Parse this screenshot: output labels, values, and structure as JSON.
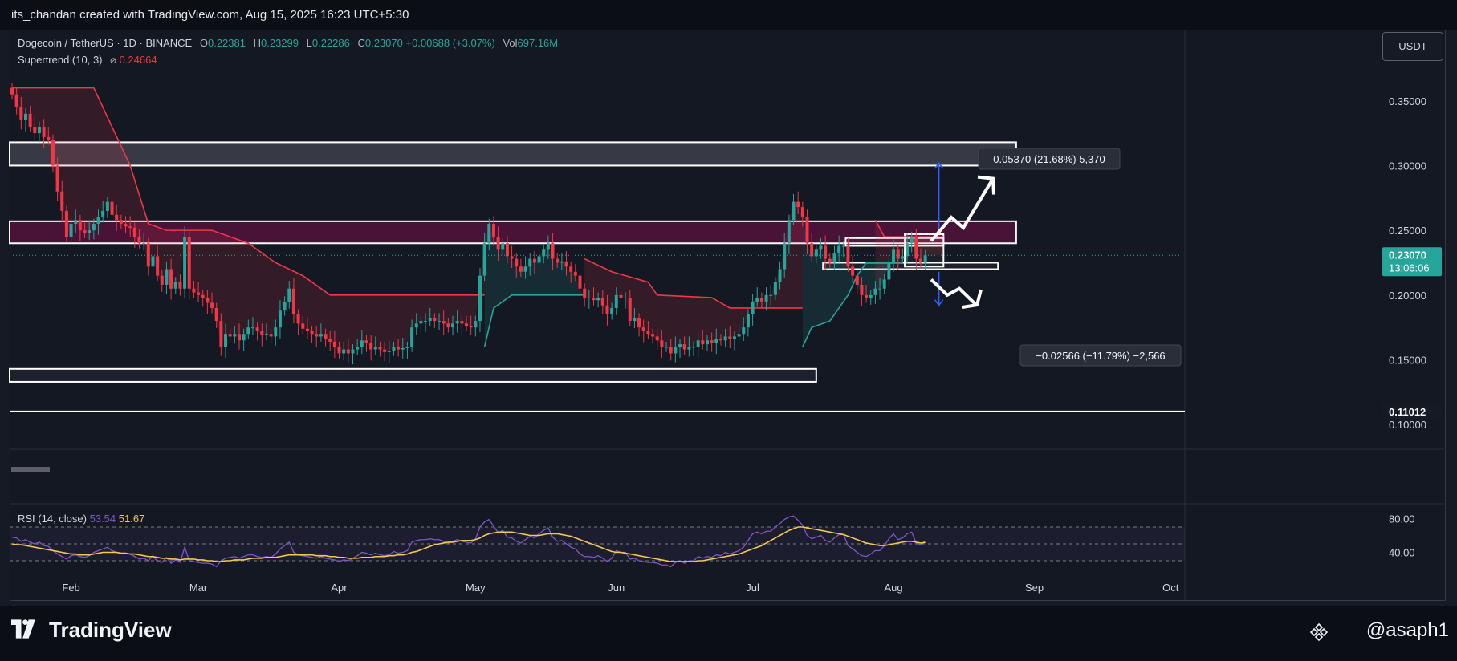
{
  "header": {
    "credit": "its_chandan created with TradingView.com, Aug 15, 2025 16:23 UTC+5:30"
  },
  "legend": {
    "symbol": "Dogecoin / TetherUS · 1D · BINANCE",
    "o_label": "O",
    "o_value": "0.22381",
    "h_label": "H",
    "h_value": "0.23299",
    "l_label": "L",
    "l_value": "0.22286",
    "c_label": "C",
    "c_value": "0.23070",
    "change": "+0.00688 (+3.07%)",
    "vol_label": "Vol",
    "vol_value": "697.16M",
    "supertrend_label": "Supertrend (10, 3)",
    "supertrend_sym": "⌀",
    "supertrend_value": "0.24664",
    "rsi_label": "RSI (14, close)",
    "rsi_value": "53.54",
    "rsi_ma_value": "51.67"
  },
  "currency_button": "USDT",
  "footer": {
    "brand": "TradingView",
    "author": "@asaph1"
  },
  "colors": {
    "up": "#26a69a",
    "down": "#f23645",
    "rsi": "#7e57c2",
    "rsi_ma": "#f2c94c",
    "background": "#141823"
  },
  "chart_data": {
    "type": "candlestick",
    "symbol": "DOGE/USDT",
    "interval": "1D",
    "x_labels": [
      "Feb",
      "Mar",
      "Apr",
      "May",
      "Jun",
      "Jul",
      "Aug",
      "Sep",
      "Oct"
    ],
    "y_ticks": [
      "0.35000",
      "0.30000",
      "0.25000",
      "0.20000",
      "0.15000",
      "0.10000"
    ],
    "y_tick_values": [
      0.35,
      0.3,
      0.25,
      0.2,
      0.15,
      0.1
    ],
    "ylim": [
      0.084,
      0.405
    ],
    "price_tag": {
      "value": "0.23070",
      "countdown": "13:06:06"
    },
    "low_tag": "0.11012",
    "series_start": "2025-01-19",
    "close": [
      0.355,
      0.345,
      0.335,
      0.34,
      0.33,
      0.325,
      0.33,
      0.322,
      0.32,
      0.3,
      0.28,
      0.265,
      0.245,
      0.255,
      0.258,
      0.25,
      0.248,
      0.25,
      0.255,
      0.26,
      0.265,
      0.272,
      0.262,
      0.258,
      0.255,
      0.253,
      0.252,
      0.245,
      0.24,
      0.24,
      0.222,
      0.23,
      0.215,
      0.208,
      0.22,
      0.205,
      0.21,
      0.205,
      0.245,
      0.205,
      0.202,
      0.2,
      0.198,
      0.194,
      0.19,
      0.18,
      0.16,
      0.17,
      0.168,
      0.17,
      0.165,
      0.17,
      0.175,
      0.175,
      0.172,
      0.169,
      0.17,
      0.168,
      0.175,
      0.188,
      0.195,
      0.205,
      0.185,
      0.178,
      0.174,
      0.172,
      0.17,
      0.168,
      0.17,
      0.166,
      0.164,
      0.16,
      0.155,
      0.158,
      0.155,
      0.158,
      0.16,
      0.165,
      0.163,
      0.158,
      0.16,
      0.158,
      0.156,
      0.157,
      0.16,
      0.158,
      0.159,
      0.16,
      0.175,
      0.178,
      0.18,
      0.18,
      0.182,
      0.18,
      0.18,
      0.178,
      0.175,
      0.178,
      0.18,
      0.178,
      0.176,
      0.175,
      0.18,
      0.215,
      0.24,
      0.255,
      0.245,
      0.235,
      0.24,
      0.23,
      0.228,
      0.222,
      0.218,
      0.222,
      0.228,
      0.225,
      0.23,
      0.235,
      0.24,
      0.228,
      0.225,
      0.226,
      0.222,
      0.218,
      0.215,
      0.205,
      0.198,
      0.198,
      0.196,
      0.198,
      0.192,
      0.185,
      0.19,
      0.2,
      0.198,
      0.198,
      0.18,
      0.182,
      0.175,
      0.172,
      0.17,
      0.168,
      0.165,
      0.16,
      0.16,
      0.155,
      0.16,
      0.162,
      0.158,
      0.16,
      0.16,
      0.165,
      0.162,
      0.165,
      0.163,
      0.166,
      0.165,
      0.168,
      0.166,
      0.168,
      0.17,
      0.175,
      0.185,
      0.195,
      0.198,
      0.195,
      0.2,
      0.2,
      0.21,
      0.22,
      0.24,
      0.258,
      0.272,
      0.268,
      0.26,
      0.24,
      0.23,
      0.235,
      0.238,
      0.228,
      0.225,
      0.232,
      0.238,
      0.238,
      0.222,
      0.215,
      0.208,
      0.2,
      0.198,
      0.2,
      0.205,
      0.205,
      0.212,
      0.225,
      0.235,
      0.228,
      0.23,
      0.24,
      0.245,
      0.228,
      0.225,
      0.2307
    ],
    "supertrend": {
      "down": [
        [
          0,
          0.36
        ],
        [
          18,
          0.36
        ],
        [
          26,
          0.3
        ],
        [
          30,
          0.255
        ],
        [
          34,
          0.25
        ],
        [
          44,
          0.25
        ],
        [
          52,
          0.24
        ],
        [
          58,
          0.225
        ],
        [
          64,
          0.215
        ],
        [
          70,
          0.2
        ],
        [
          90,
          0.2
        ],
        [
          104,
          0.2
        ],
        [
          104,
          0.2
        ]
      ],
      "down2": [
        [
          126,
          0.228
        ],
        [
          132,
          0.218
        ],
        [
          140,
          0.21
        ],
        [
          142,
          0.2
        ],
        [
          154,
          0.198
        ],
        [
          158,
          0.19
        ],
        [
          172,
          0.19
        ],
        [
          174,
          0.19
        ]
      ],
      "down3": [
        [
          190,
          0.258
        ],
        [
          192,
          0.245
        ],
        [
          200,
          0.245
        ],
        [
          205,
          0.245
        ]
      ],
      "up": [
        [
          104,
          0.16
        ],
        [
          106,
          0.19
        ],
        [
          110,
          0.2
        ],
        [
          126,
          0.2
        ]
      ],
      "up2": [
        [
          174,
          0.16
        ],
        [
          176,
          0.175
        ],
        [
          180,
          0.18
        ],
        [
          184,
          0.2
        ],
        [
          186,
          0.215
        ],
        [
          188,
          0.225
        ],
        [
          196,
          0.225
        ]
      ]
    },
    "zones": [
      {
        "from": 0,
        "to": 221,
        "low": 0.3,
        "high": 0.318
      },
      {
        "from": 0,
        "to": 221,
        "low": 0.24,
        "high": 0.257
      },
      {
        "from": 0,
        "to": 177,
        "low": 0.133,
        "high": 0.143
      },
      {
        "from": 184,
        "to": 205,
        "low": 0.238,
        "high": 0.244
      },
      {
        "from": 179,
        "to": 217,
        "low": 0.22,
        "high": 0.225
      },
      {
        "from": 197,
        "to": 205,
        "low": 0.222,
        "high": 0.247
      }
    ],
    "measure_up": {
      "label": "0.05370 (21.68%) 5,370",
      "from": 0.248,
      "to": 0.302
    },
    "measure_down": {
      "label": "−0.02566 (−11.79%) −2,566",
      "from": 0.218,
      "to": 0.192
    },
    "rsi": {
      "levels": [
        "80.00",
        "40.00"
      ],
      "level_values": [
        80,
        40
      ],
      "upper_band": 70,
      "middle_band": 50,
      "lower_band": 30,
      "values": [
        58,
        57,
        53,
        55,
        52,
        50,
        52,
        48,
        47,
        42,
        38,
        35,
        32,
        36,
        37,
        35,
        34,
        36,
        40,
        42,
        44,
        46,
        42,
        40,
        39,
        39,
        38,
        35,
        32,
        33,
        30,
        36,
        29,
        28,
        34,
        27,
        31,
        28,
        46,
        30,
        29,
        28,
        27,
        27,
        26,
        23,
        30,
        33,
        34,
        35,
        33,
        35,
        37,
        37,
        35,
        34,
        35,
        34,
        38,
        44,
        48,
        52,
        40,
        37,
        36,
        35,
        34,
        33,
        35,
        33,
        32,
        31,
        29,
        31,
        30,
        33,
        36,
        40,
        39,
        37,
        39,
        37,
        36,
        37,
        41,
        39,
        40,
        42,
        52,
        54,
        55,
        55,
        56,
        55,
        55,
        53,
        51,
        53,
        55,
        53,
        52,
        51,
        56,
        70,
        76,
        79,
        71,
        63,
        66,
        58,
        57,
        53,
        51,
        55,
        59,
        57,
        62,
        66,
        69,
        58,
        53,
        54,
        50,
        46,
        44,
        38,
        35,
        35,
        34,
        36,
        33,
        29,
        33,
        42,
        40,
        40,
        32,
        33,
        30,
        29,
        28,
        28,
        27,
        25,
        25,
        23,
        28,
        30,
        27,
        30,
        30,
        35,
        33,
        35,
        34,
        37,
        36,
        40,
        38,
        40,
        42,
        46,
        54,
        62,
        64,
        62,
        65,
        65,
        70,
        74,
        79,
        82,
        83,
        78,
        72,
        60,
        56,
        58,
        60,
        54,
        52,
        57,
        61,
        61,
        48,
        44,
        40,
        36,
        35,
        38,
        42,
        42,
        48,
        56,
        62,
        55,
        57,
        62,
        64,
        51,
        49,
        53.54
      ],
      "ma_values": [
        50,
        49,
        49,
        48,
        47,
        46,
        45,
        44,
        43,
        42,
        41,
        40,
        39,
        38,
        38,
        37,
        37,
        37,
        38,
        39,
        40,
        40,
        40,
        40,
        39,
        39,
        38,
        38,
        37,
        36,
        35,
        35,
        34,
        33,
        33,
        32,
        32,
        31,
        32,
        32,
        32,
        31,
        31,
        30,
        30,
        29,
        29,
        30,
        30,
        31,
        31,
        31,
        32,
        33,
        33,
        33,
        34,
        34,
        34,
        35,
        36,
        37,
        37,
        37,
        37,
        37,
        37,
        36,
        36,
        36,
        35,
        35,
        34,
        34,
        33,
        33,
        33,
        34,
        34,
        34,
        35,
        35,
        35,
        36,
        36,
        37,
        37,
        38,
        40,
        41,
        43,
        45,
        47,
        49,
        50,
        51,
        52,
        52,
        53,
        54,
        54,
        54,
        55,
        57,
        60,
        62,
        63,
        64,
        64,
        64,
        64,
        63,
        62,
        61,
        60,
        60,
        60,
        61,
        62,
        62,
        62,
        61,
        60,
        59,
        57,
        55,
        53,
        51,
        49,
        47,
        45,
        43,
        41,
        40,
        40,
        39,
        38,
        37,
        36,
        35,
        34,
        33,
        32,
        31,
        30,
        29,
        29,
        29,
        29,
        29,
        29,
        30,
        30,
        31,
        32,
        33,
        34,
        35,
        36,
        37,
        38,
        40,
        42,
        44,
        46,
        48,
        51,
        54,
        57,
        60,
        63,
        66,
        68,
        70,
        70,
        69,
        68,
        67,
        66,
        65,
        64,
        63,
        62,
        61,
        59,
        57,
        55,
        53,
        51,
        50,
        49,
        48,
        48,
        49,
        50,
        51,
        52,
        53,
        53,
        52,
        51,
        51.67
      ]
    }
  }
}
